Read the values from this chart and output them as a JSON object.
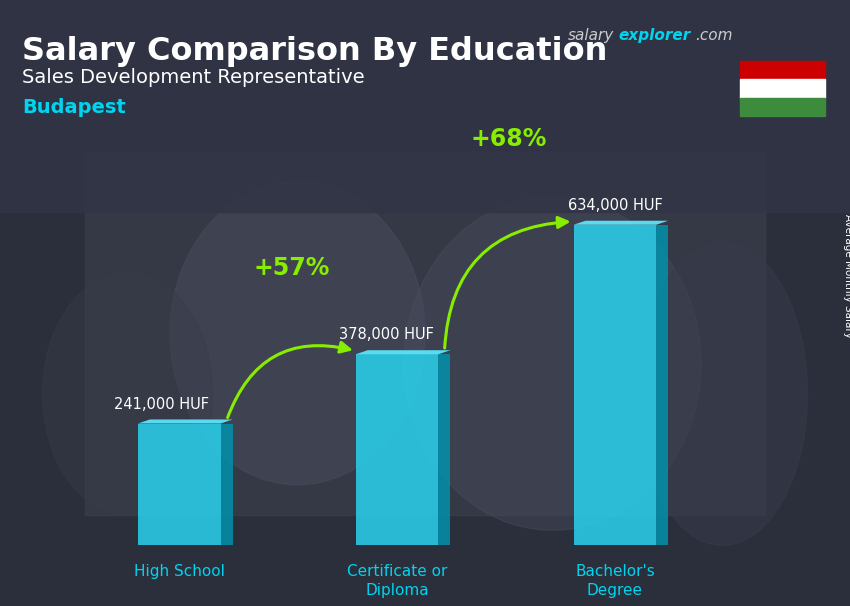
{
  "title_main": "Salary Comparison By Education",
  "subtitle": "Sales Development Representative",
  "city": "Budapest",
  "ylabel": "Average Monthly Salary",
  "categories": [
    "High School",
    "Certificate or\nDiploma",
    "Bachelor's\nDegree"
  ],
  "values": [
    241000,
    378000,
    634000
  ],
  "value_labels": [
    "241,000 HUF",
    "378,000 HUF",
    "634,000 HUF"
  ],
  "pct_labels": [
    "+57%",
    "+68%"
  ],
  "bar_color_front": "#29d9f5",
  "bar_color_side": "#0095b0",
  "bar_color_top": "#5ee8ff",
  "bar_alpha": 0.82,
  "bg_dark": "#2a2e3a",
  "bg_mid": "#3d3f4a",
  "text_color_white": "#ffffff",
  "text_color_cyan": "#00d4ef",
  "text_color_green": "#88ee00",
  "arrow_color": "#88ee00",
  "salary_color": "#cccccc",
  "explorer_color": "#00d4ef",
  "com_color": "#cccccc",
  "flag_red": "#cc0000",
  "flag_white": "#ffffff",
  "flag_green": "#3d8b3d",
  "figsize": [
    8.5,
    6.06
  ],
  "dpi": 100
}
